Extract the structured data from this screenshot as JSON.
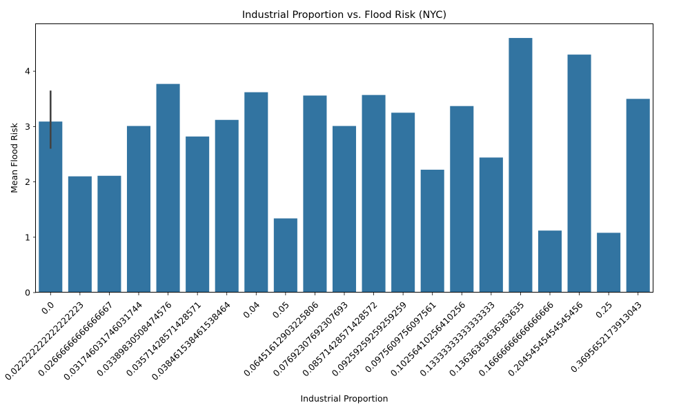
{
  "chart_data": {
    "type": "bar",
    "title": "Industrial Proportion vs. Flood Risk (NYC)",
    "xlabel": "Industrial Proportion",
    "ylabel": "Mean Flood Risk",
    "ylim": [
      0,
      4.85
    ],
    "yticks": [
      0,
      1,
      2,
      3,
      4
    ],
    "grid": false,
    "legend": false,
    "bar_color": "#3274a1",
    "errorbar_color": "#424242",
    "categories": [
      "0.0",
      "0.022222222222222223",
      "0.02666666666666667",
      "0.031746031746031744",
      "0.03389830508474576",
      "0.03571428571428571",
      "0.038461538461538464",
      "0.04",
      "0.05",
      "0.06451612903225806",
      "0.07692307692307693",
      "0.08571428571428572",
      "0.09259259259259259",
      "0.0975609756097561",
      "0.10256410256410256",
      "0.13333333333333333",
      "0.13636363636363635",
      "0.16666666666666666",
      "0.20454545454545456",
      "0.25",
      "0.3695652173913043"
    ],
    "values": [
      3.09,
      2.1,
      2.11,
      3.01,
      3.77,
      2.82,
      3.12,
      3.62,
      1.34,
      3.56,
      3.01,
      3.57,
      3.25,
      2.22,
      3.37,
      2.44,
      4.6,
      1.12,
      4.3,
      1.08,
      3.5
    ],
    "error_bars": [
      {
        "category": "0.0",
        "low": 2.6,
        "high": 3.65
      }
    ]
  }
}
